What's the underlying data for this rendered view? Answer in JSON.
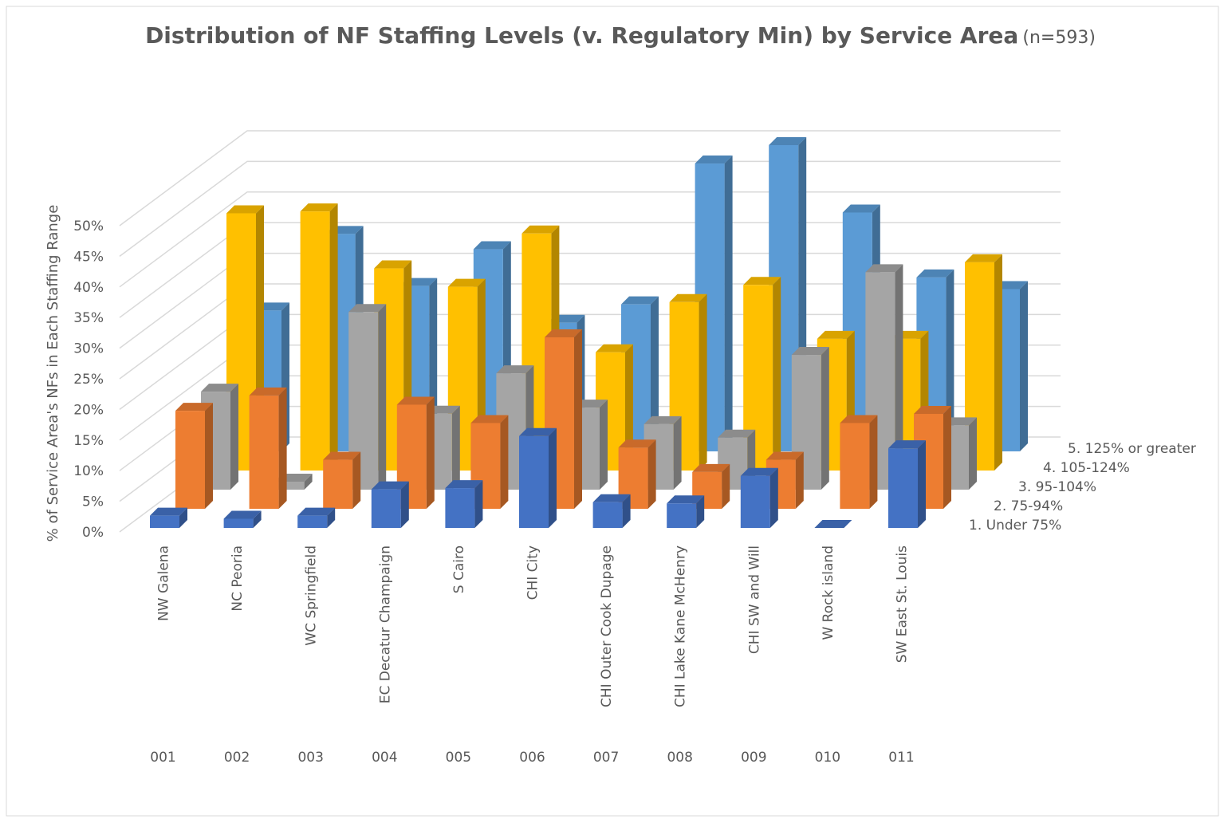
{
  "chart_data": {
    "type": "bar3d",
    "title": "Distribution of NF Staffing Levels (v. Regulatory Min) by Service Area",
    "subtitle": "(n=593)",
    "y_label": "% of Service Area's NFs in Each Staffing Range",
    "categories": [
      "NW Galena",
      "NC Peoria",
      "WC Springfield",
      "EC Decatur Champaign",
      "S Cairo",
      "CHI City",
      "CHI Outer Cook Dupage",
      "CHI Lake Kane McHenry",
      "CHI SW and Will",
      "W Rock island",
      "SW East St. Louis"
    ],
    "codes": [
      "001",
      "002",
      "003",
      "004",
      "005",
      "006",
      "007",
      "008",
      "009",
      "010",
      "011"
    ],
    "series": [
      {
        "name": "1. Under 75%",
        "color": "#4472c4",
        "values": [
          2,
          1.5,
          2,
          6.3,
          6.5,
          15,
          4.2,
          4,
          8.5,
          0,
          13
        ]
      },
      {
        "name": "2. 75-94%",
        "color": "#ed7d31",
        "values": [
          16,
          18.5,
          8,
          17,
          14,
          28,
          10,
          6,
          8,
          14,
          15.5
        ]
      },
      {
        "name": "3. 95-104%",
        "color": "#a5a5a5",
        "values": [
          16,
          1.3,
          29,
          12.4,
          19,
          13.4,
          10.7,
          8.5,
          22,
          35.5,
          10.5
        ]
      },
      {
        "name": "4. 105-124%",
        "color": "#ffc000",
        "values": [
          42,
          42.3,
          33,
          30,
          38.7,
          19.3,
          27.5,
          30.3,
          21.5,
          21.5,
          34
        ]
      },
      {
        "name": "5. 125% or greater",
        "color": "#5b9bd5",
        "values": [
          23,
          35.5,
          27,
          33,
          21,
          24,
          47,
          50,
          39,
          28.4,
          26.5
        ]
      }
    ],
    "ylim": [
      0,
      50
    ],
    "yticks": [
      {
        "value": 0,
        "label": "0%"
      },
      {
        "value": 5,
        "label": "5%"
      },
      {
        "value": 10,
        "label": "10%"
      },
      {
        "value": 15,
        "label": "15%"
      },
      {
        "value": 20,
        "label": "20%"
      },
      {
        "value": 25,
        "label": "25%"
      },
      {
        "value": 30,
        "label": "30%"
      },
      {
        "value": 35,
        "label": "35%"
      },
      {
        "value": 40,
        "label": "40%"
      },
      {
        "value": 45,
        "label": "45%"
      },
      {
        "value": 50,
        "label": "50%"
      }
    ],
    "grid": true
  }
}
